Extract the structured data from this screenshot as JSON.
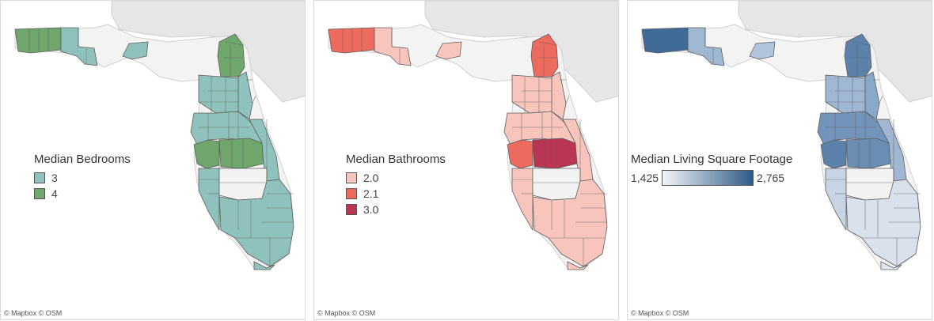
{
  "credit": "© Mapbox © OSM",
  "map_colors": {
    "land": "#e6e6e6",
    "lightland": "#f3f3f3",
    "water": "#ffffff",
    "border": "#cfcfcf",
    "county_border": "#5e5e5e",
    "no_data": "#f2f2f2"
  },
  "panels": [
    {
      "metric": "Median Bedrooms",
      "legend": {
        "type": "categorical",
        "title": "Median Bedrooms",
        "items": [
          {
            "label": "3",
            "color": "#8fc2bc"
          },
          {
            "label": "4",
            "color": "#6ea66b"
          }
        ]
      },
      "regions": {
        "panhandle_west": "#6ea66b",
        "panhandle_mid": "#8fc2bc",
        "big_bend": "#8fc2bc",
        "northeast": "#6ea66b",
        "north_central": "#8fc2bc",
        "jax": "#8fc2bc",
        "central": "#8fc2bc",
        "tampa": "#6ea66b",
        "polk": "#6ea66b",
        "east_coast": "#8fc2bc",
        "southwest": "#8fc2bc",
        "south_interior": "#f2f2f2",
        "southeast": "#8fc2bc",
        "keys": "#8fc2bc"
      }
    },
    {
      "metric": "Median Bathrooms",
      "legend": {
        "type": "categorical",
        "title": "Median Bathrooms",
        "items": [
          {
            "label": "2.0",
            "color": "#f7c5bc"
          },
          {
            "label": "2.1",
            "color": "#ec6b5e"
          },
          {
            "label": "3.0",
            "color": "#b93552"
          }
        ]
      },
      "regions": {
        "panhandle_west": "#ec6b5e",
        "panhandle_mid": "#f7c5bc",
        "big_bend": "#f7c5bc",
        "northeast": "#ec6b5e",
        "north_central": "#f7c5bc",
        "jax": "#f7c5bc",
        "central": "#f7c5bc",
        "tampa": "#ec6b5e",
        "polk": "#b93552",
        "east_coast": "#f7c5bc",
        "southwest": "#f7c5bc",
        "south_interior": "#f2f2f2",
        "southeast": "#f7c5bc",
        "keys": "#f7c5bc"
      }
    },
    {
      "metric": "Median Living Square Footage",
      "legend": {
        "type": "continuous",
        "title": "Median Living Square Footage",
        "min_label": "1,425",
        "max_label": "2,765",
        "min_color": "#f2f4f7",
        "max_color": "#2e5a87"
      },
      "regions": {
        "panhandle_west": "#3f6b98",
        "panhandle_mid": "#9fb7d1",
        "big_bend": "#b0c5db",
        "northeast": "#5c82ab",
        "north_central": "#9fb7d1",
        "jax": "#8aa8c8",
        "central": "#7294ba",
        "tampa": "#5c82ab",
        "polk": "#6a8db4",
        "east_coast": "#9fb7d1",
        "southwest": "#c6d4e4",
        "south_interior": "#f2f2f2",
        "southeast": "#d8e1ec",
        "keys": "#dfe6ef"
      }
    }
  ]
}
